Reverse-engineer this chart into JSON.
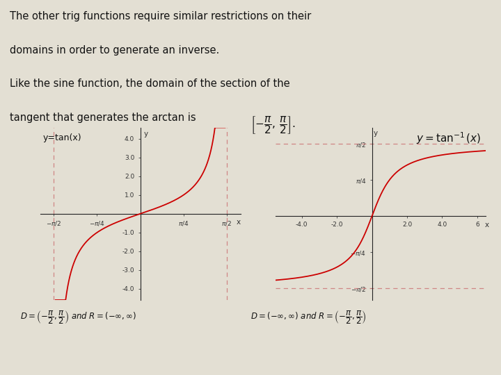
{
  "bg_color": "#e3dfd3",
  "text_color": "#111111",
  "curve_color": "#cc0000",
  "asymptote_color": "#cc7777",
  "pi_half": 1.5707963267948966,
  "pi_quarter": 0.7853981633974483,
  "title_lines": [
    "The other trig functions require similar restrictions on their",
    "domains in order to generate an inverse.",
    "Like the sine function, the domain of the section of the",
    "tangent that generates the arctan is"
  ],
  "label_left": "y=tan(x)",
  "tan_yticks": [
    -4.0,
    -3.0,
    -2.0,
    -1.0,
    1.0,
    2.0,
    3.0,
    4.0
  ],
  "tan_ytick_labels": [
    "-4.0",
    "-3.0",
    "-2.0",
    "-1.0",
    "1.0",
    "2.0",
    "3.0",
    "4.0"
  ],
  "atan_xticks": [
    -4.0,
    -2.0,
    2.0,
    4.0,
    6.0
  ],
  "atan_xtick_labels": [
    "-4.0",
    "-2.0",
    "2.0",
    "4.0",
    "6"
  ]
}
